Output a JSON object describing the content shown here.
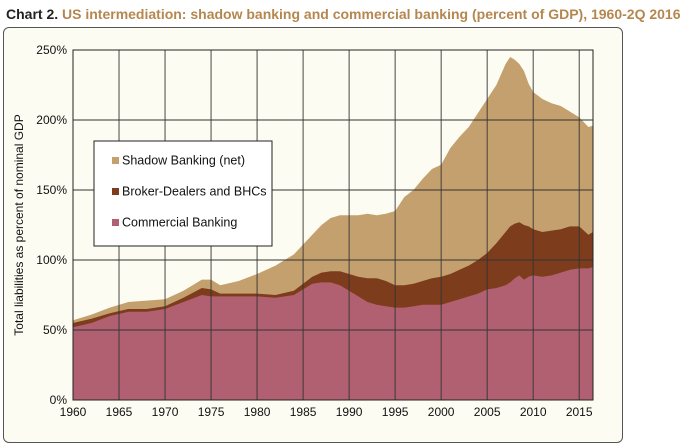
{
  "title": {
    "label": "Chart 2.",
    "text": "US intermediation: shadow banking and commercial banking (percent of GDP), 1960-2Q 2016"
  },
  "colors": {
    "shadow": "#c4a06e",
    "broker": "#7d3c1c",
    "commercial": "#b06070",
    "background": "#fdfcf2",
    "grid": "#333333",
    "title_accent": "#b5874f"
  },
  "chart_data": {
    "type": "area",
    "stacked": true,
    "ylabel": "Total liabilities as percent of nominal GDP",
    "xlim": [
      1960,
      2016.5
    ],
    "ylim": [
      0,
      250
    ],
    "x_ticks": [
      1960,
      1965,
      1970,
      1975,
      1980,
      1985,
      1990,
      1995,
      2000,
      2005,
      2010,
      2015
    ],
    "x_tick_labels": [
      "1960",
      "1965",
      "1970",
      "1975",
      "1980",
      "1985",
      "1990",
      "1995",
      "2000",
      "2005",
      "2010",
      "2015"
    ],
    "y_ticks": [
      0,
      50,
      100,
      150,
      200,
      250
    ],
    "y_tick_labels": [
      "0%",
      "50%",
      "100%",
      "150%",
      "200%",
      "250%"
    ],
    "grid": true,
    "legend_position": "upper-left",
    "x": [
      1960,
      1962,
      1964,
      1966,
      1968,
      1970,
      1972,
      1974,
      1975,
      1976,
      1978,
      1980,
      1982,
      1984,
      1986,
      1987,
      1988,
      1989,
      1990,
      1991,
      1992,
      1993,
      1994,
      1995,
      1996,
      1997,
      1998,
      1999,
      2000,
      2001,
      2002,
      2003,
      2004,
      2005,
      2006,
      2007,
      2007.5,
      2008,
      2008.5,
      2009,
      2009.5,
      2010,
      2011,
      2012,
      2013,
      2014,
      2015,
      2016,
      2016.5
    ],
    "series": [
      {
        "name": "Commercial Banking",
        "values": [
          52,
          55,
          60,
          63,
          63,
          65,
          70,
          75,
          74,
          74,
          74,
          74,
          73,
          75,
          83,
          84,
          84,
          82,
          78,
          74,
          70,
          68,
          67,
          66,
          66,
          67,
          68,
          68,
          68,
          70,
          72,
          74,
          76,
          79,
          80,
          82,
          84,
          87,
          89,
          86,
          88,
          89,
          88,
          89,
          91,
          93,
          94,
          94,
          95
        ]
      },
      {
        "name": "Broker-Dealers and BHCs",
        "values": [
          55,
          58,
          62,
          65,
          65,
          67,
          73,
          80,
          79,
          76,
          76,
          76,
          75,
          78,
          88,
          91,
          92,
          92,
          90,
          88,
          87,
          87,
          85,
          82,
          82,
          83,
          85,
          87,
          88,
          90,
          93,
          96,
          100,
          105,
          112,
          120,
          124,
          126,
          127,
          125,
          124,
          122,
          120,
          121,
          122,
          124,
          124,
          118,
          120
        ]
      },
      {
        "name": "Shadow Banking (net)",
        "values": [
          57,
          61,
          66,
          70,
          71,
          72,
          78,
          86,
          86,
          82,
          85,
          90,
          96,
          104,
          118,
          125,
          130,
          132,
          132,
          132,
          133,
          132,
          133,
          135,
          145,
          150,
          158,
          165,
          168,
          180,
          188,
          195,
          205,
          215,
          225,
          240,
          245,
          243,
          240,
          235,
          226,
          220,
          215,
          212,
          210,
          206,
          202,
          195,
          196
        ]
      }
    ]
  }
}
